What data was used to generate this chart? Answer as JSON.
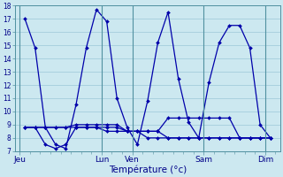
{
  "background_color": "#cce8f0",
  "grid_color": "#9cc8d8",
  "line_color": "#0000aa",
  "xlabel": "Température (°c)",
  "ylim": [
    7,
    18
  ],
  "yticks": [
    7,
    8,
    9,
    10,
    11,
    12,
    13,
    14,
    15,
    16,
    17,
    18
  ],
  "day_labels": [
    "Jeu",
    "Lun",
    "Ven",
    "Sam",
    "Dim"
  ],
  "day_x_positions": [
    0.5,
    8.5,
    11.5,
    18.5,
    24.5
  ],
  "vline_positions": [
    0.5,
    8.5,
    11.5,
    18.5,
    24.5
  ],
  "xlim": [
    0,
    26
  ],
  "series1": [
    17,
    14.8,
    8.8,
    7.5,
    7.2,
    10.5,
    14.8,
    17.7,
    16.8,
    11.0,
    8.8,
    7.5,
    10.8,
    15.2,
    17.5,
    12.5,
    9.2,
    8.0,
    12.2,
    15.2,
    16.5,
    16.5,
    14.8,
    9.0,
    8.0
  ],
  "series1_x": [
    1,
    2,
    3,
    4,
    5,
    6,
    7,
    8,
    9,
    10,
    11,
    12,
    13,
    14,
    15,
    16,
    17,
    18,
    19,
    20,
    21,
    22,
    23,
    24,
    25
  ],
  "series2": [
    8.8,
    8.8,
    8.8,
    8.8,
    8.8,
    8.8,
    8.8,
    8.8,
    8.5,
    8.5,
    8.5,
    8.5,
    8.5,
    8.5,
    8.0,
    8.0,
    8.0,
    8.0,
    8.0,
    8.0,
    8.0,
    8.0,
    8.0,
    8.0,
    8.0
  ],
  "series2_x": [
    1,
    2,
    3,
    4,
    5,
    6,
    7,
    8,
    9,
    10,
    11,
    12,
    13,
    14,
    15,
    16,
    17,
    18,
    19,
    20,
    21,
    22,
    23,
    24,
    25
  ],
  "series3": [
    8.8,
    8.8,
    8.8,
    8.8,
    8.8,
    9.0,
    9.0,
    9.0,
    9.0,
    9.0,
    8.5,
    8.5,
    8.5,
    8.5,
    9.5,
    9.5,
    9.5,
    9.5,
    9.5,
    9.5,
    9.5,
    8.0,
    8.0,
    8.0,
    8.0
  ],
  "series3_x": [
    1,
    2,
    3,
    4,
    5,
    6,
    7,
    8,
    9,
    10,
    11,
    12,
    13,
    14,
    15,
    16,
    17,
    18,
    19,
    20,
    21,
    22,
    23,
    24,
    25
  ],
  "series4": [
    8.8,
    8.8,
    7.5,
    7.2,
    7.5,
    8.8,
    8.8,
    8.8,
    8.8,
    8.8,
    8.5,
    8.5,
    8.0,
    8.0,
    8.0,
    8.0,
    8.0,
    8.0,
    8.0,
    8.0,
    8.0,
    8.0,
    8.0,
    8.0,
    8.0
  ],
  "series4_x": [
    1,
    2,
    3,
    4,
    5,
    6,
    7,
    8,
    9,
    10,
    11,
    12,
    13,
    14,
    15,
    16,
    17,
    18,
    19,
    20,
    21,
    22,
    23,
    24,
    25
  ],
  "line_width": 0.9,
  "marker": "D",
  "marker_size": 2.0
}
